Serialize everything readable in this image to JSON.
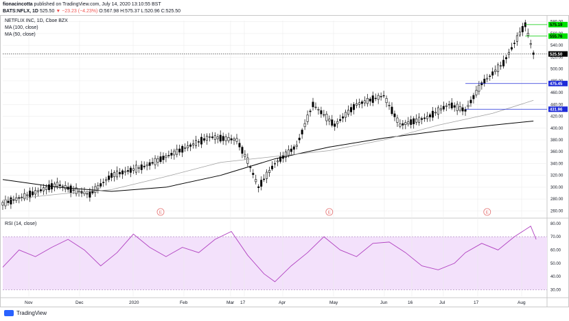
{
  "header": {
    "line1_user": "fionacincotta",
    "line1_rest": " published on TradingView.com, July 14, 2020 13:10:55 BST",
    "symbol": "BATS:NFLX, 1D",
    "price": "525.50",
    "change": "▼ −23.23 (−4.23%)",
    "o": "O:567.98",
    "h": "H:575.37",
    "l": "L:520.96",
    "c": "C:525.50"
  },
  "legend": {
    "title": "NETFLIX INC, 1D, Cboe BZX",
    "ma100": "MA (100, close)",
    "ma50": "MA (50, close)",
    "rsi": "RSI (14, close)"
  },
  "footer": {
    "brand": "TradingView"
  },
  "colors": {
    "up": "#ffffff",
    "down": "#000000",
    "ma100": "#000000",
    "ma50": "#9e9e9e",
    "rsi": "#b040c0",
    "rsi_band": "#f3e1fb",
    "green_line": "#00c800",
    "blue_line": "#1e2bd8",
    "earnings": "#e57373",
    "grid": "#ececec"
  },
  "chart_data": [
    {
      "type": "candlestick",
      "title": "NETFLIX INC, 1D, Cboe BZX",
      "ylim": [
        250,
        582
      ],
      "y_ticks": [
        260,
        280,
        300,
        320,
        340,
        360,
        380,
        400,
        420,
        440,
        460,
        480,
        500,
        520,
        540,
        560,
        580
      ],
      "x_labels": [
        "Nov",
        "Dec",
        "2020",
        "Feb",
        "Mar",
        "17",
        "Apr",
        "May",
        "Jun",
        "16",
        "Jul",
        "17",
        "Aug"
      ],
      "series": [
        {
          "name": "MA (100, close)",
          "x": [
            0,
            20,
            40,
            60,
            80,
            100,
            120,
            140,
            160,
            180,
            195
          ],
          "values": [
            313,
            300,
            293,
            300,
            320,
            348,
            368,
            383,
            395,
            405,
            412
          ]
        },
        {
          "name": "MA (50, close)",
          "x": [
            0,
            20,
            40,
            60,
            80,
            100,
            120,
            140,
            160,
            180,
            195
          ],
          "values": [
            278,
            288,
            296,
            318,
            342,
            352,
            362,
            380,
            405,
            425,
            447
          ]
        }
      ],
      "price_labels": [
        {
          "value": "575.19",
          "level": 575.19,
          "color": "green"
        },
        {
          "value": "555.76",
          "level": 555.76,
          "color": "green"
        },
        {
          "value": "525.50",
          "level": 525.5,
          "color": "black"
        },
        {
          "value": "475.45",
          "level": 475.45,
          "color": "blue"
        },
        {
          "value": "431.96",
          "level": 431.96,
          "color": "blue"
        }
      ],
      "earnings_marks": [
        "E",
        "E",
        "E"
      ]
    },
    {
      "type": "line",
      "title": "RSI (14, close)",
      "ylim": [
        25,
        82
      ],
      "y_ticks": [
        30,
        40,
        50,
        60,
        70,
        80
      ],
      "series": [
        {
          "name": "RSI (14, close)",
          "x": [
            0,
            6,
            12,
            18,
            24,
            30,
            36,
            42,
            48,
            54,
            60,
            66,
            72,
            78,
            84,
            90,
            96,
            100,
            106,
            112,
            118,
            124,
            130,
            136,
            142,
            148,
            154,
            160,
            166,
            170,
            176,
            182,
            188,
            194,
            196
          ],
          "values": [
            47,
            60,
            55,
            62,
            68,
            60,
            48,
            58,
            72,
            62,
            55,
            62,
            58,
            68,
            74,
            56,
            42,
            36,
            48,
            58,
            70,
            60,
            55,
            65,
            66,
            58,
            48,
            45,
            50,
            58,
            65,
            60,
            70,
            78,
            68
          ]
        }
      ]
    }
  ]
}
